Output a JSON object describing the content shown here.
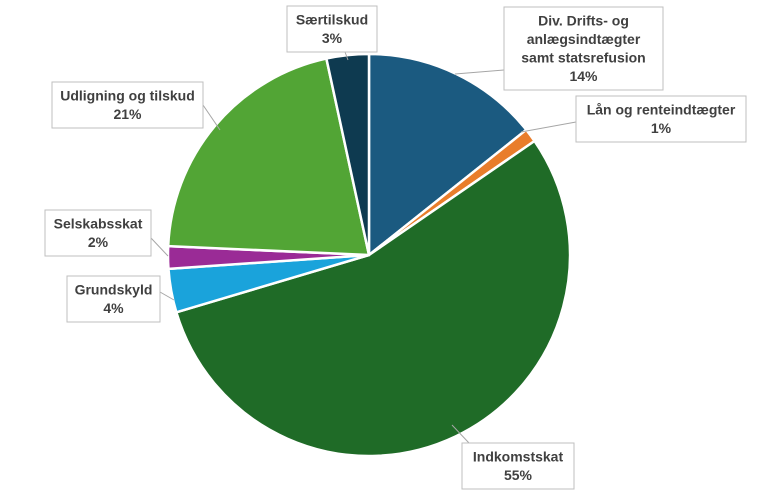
{
  "chart_data": {
    "type": "pie",
    "title": "",
    "slices": [
      {
        "label": "Div. Drifts- og anlægsindtægter samt statsrefusion",
        "lines": [
          "Div. Drifts- og",
          "anlægsindtægter",
          "samt statsrefusion"
        ],
        "percent_label": "14%",
        "value": 14.3,
        "color": "#1b5a80"
      },
      {
        "label": "Lån og renteindtægter",
        "lines": [
          "Lån og renteindtægter"
        ],
        "percent_label": "1%",
        "value": 1.1,
        "color": "#e97d2b"
      },
      {
        "label": "Indkomstskat",
        "lines": [
          "Indkomstskat"
        ],
        "percent_label": "55%",
        "value": 55.0,
        "color": "#1f6b27"
      },
      {
        "label": "Grundskyld",
        "lines": [
          "Grundskyld"
        ],
        "percent_label": "4%",
        "value": 3.5,
        "color": "#1aa3db"
      },
      {
        "label": "Selskabsskat",
        "lines": [
          "Selskabsskat"
        ],
        "percent_label": "2%",
        "value": 1.8,
        "color": "#9a2b96"
      },
      {
        "label": "Udligning og tilskud",
        "lines": [
          "Udligning og tilskud"
        ],
        "percent_label": "21%",
        "value": 20.9,
        "color": "#52a535"
      },
      {
        "label": "Særtilskud",
        "lines": [
          "Særtilskud"
        ],
        "percent_label": "3%",
        "value": 3.4,
        "color": "#0e3a50"
      }
    ],
    "legend": "none",
    "data_labels": "callouts with leader lines"
  }
}
